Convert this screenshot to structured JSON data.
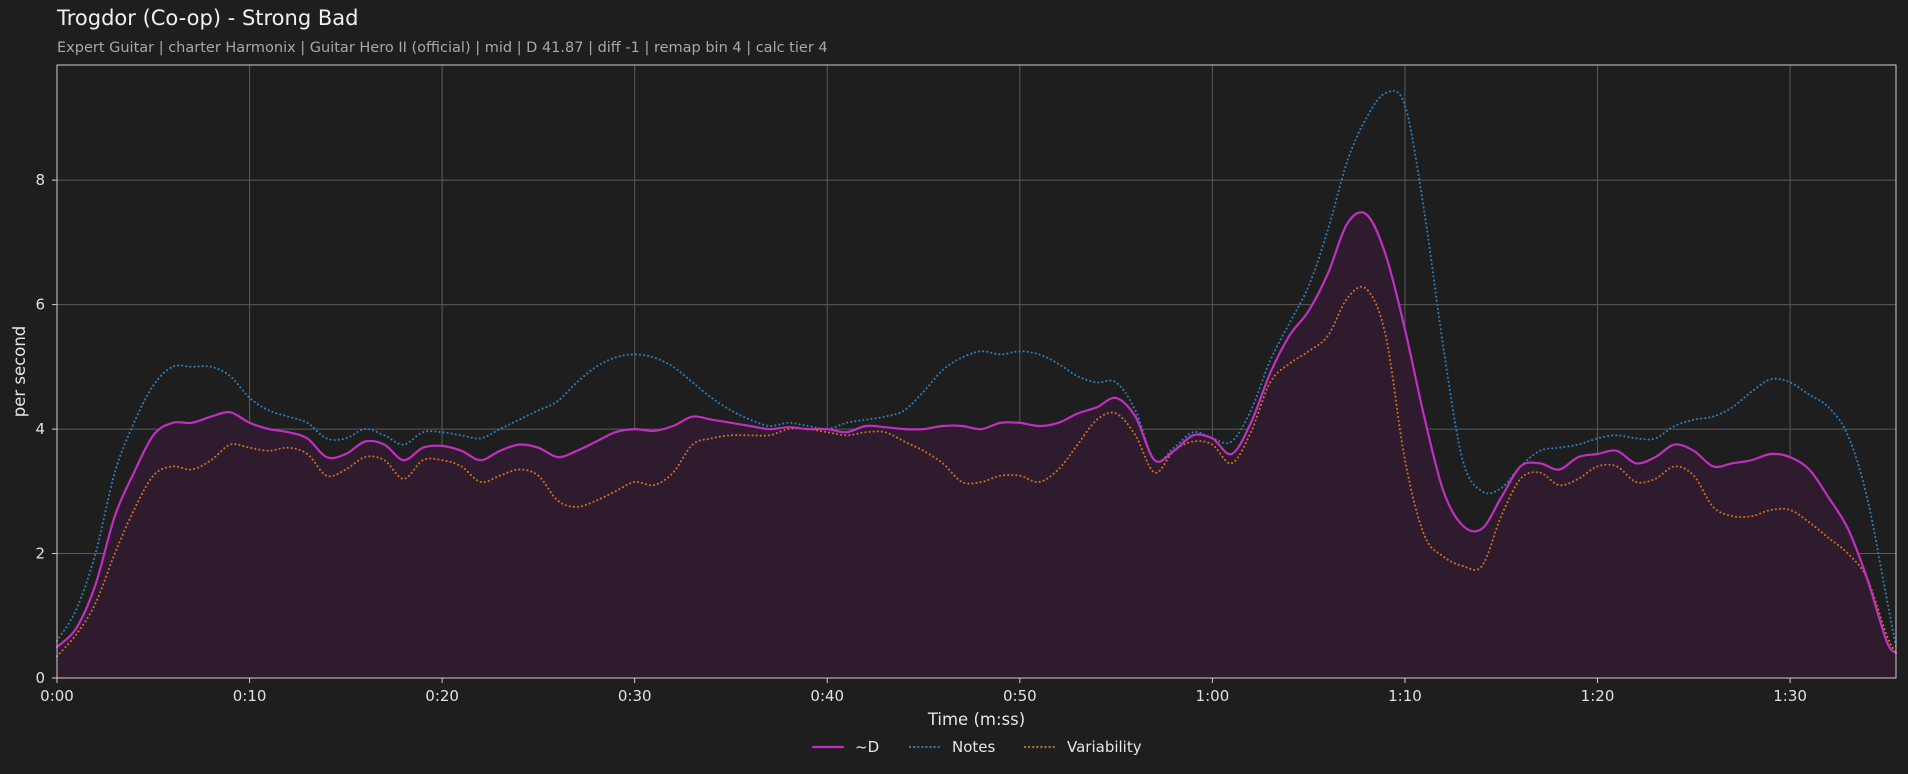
{
  "title": "Trogdor (Co-op) - Strong Bad",
  "subtitle": "Expert Guitar  |  charter Harmonix  |  Guitar Hero II (official)  |  mid  |  D 41.87  |  diff -1  |  remap bin 4  |  calc tier 4",
  "chart_data": {
    "type": "line",
    "title": "Trogdor (Co-op) - Strong Bad",
    "xlabel": "Time (m:ss)",
    "ylabel": "per second",
    "xlim": [
      0,
      95.5
    ],
    "ylim": [
      0,
      9.85
    ],
    "grid": true,
    "legend_position": "bottom-center",
    "x_ticks": [
      {
        "value": 0,
        "label": "0:00"
      },
      {
        "value": 10,
        "label": "0:10"
      },
      {
        "value": 20,
        "label": "0:20"
      },
      {
        "value": 30,
        "label": "0:30"
      },
      {
        "value": 40,
        "label": "0:40"
      },
      {
        "value": 50,
        "label": "0:50"
      },
      {
        "value": 60,
        "label": "1:00"
      },
      {
        "value": 70,
        "label": "1:10"
      },
      {
        "value": 80,
        "label": "1:20"
      },
      {
        "value": 90,
        "label": "1:30"
      }
    ],
    "y_ticks": [
      {
        "value": 0,
        "label": "0"
      },
      {
        "value": 2,
        "label": "2"
      },
      {
        "value": 4,
        "label": "4"
      },
      {
        "value": 6,
        "label": "6"
      },
      {
        "value": 8,
        "label": "8"
      }
    ],
    "x": [
      0,
      1,
      2,
      3,
      4,
      5,
      6,
      7,
      8,
      9,
      10,
      11,
      12,
      13,
      14,
      15,
      16,
      17,
      18,
      19,
      20,
      21,
      22,
      23,
      24,
      25,
      26,
      27,
      28,
      29,
      30,
      31,
      32,
      33,
      34,
      35,
      36,
      37,
      38,
      39,
      40,
      41,
      42,
      43,
      44,
      45,
      46,
      47,
      48,
      49,
      50,
      51,
      52,
      53,
      54,
      55,
      56,
      57,
      58,
      59,
      60,
      61,
      62,
      63,
      64,
      65,
      66,
      67,
      68,
      69,
      70,
      71,
      72,
      73,
      74,
      75,
      76,
      77,
      78,
      79,
      80,
      81,
      82,
      83,
      84,
      85,
      86,
      87,
      88,
      89,
      90,
      91,
      92,
      93,
      94,
      95,
      95.5
    ],
    "series": [
      {
        "name": "~D",
        "color": "#c030c0",
        "style": "solid",
        "fill": "#2e1c2e",
        "values": [
          0.5,
          0.8,
          1.5,
          2.6,
          3.3,
          3.9,
          4.1,
          4.1,
          4.2,
          4.27,
          4.1,
          4.0,
          3.95,
          3.85,
          3.55,
          3.6,
          3.8,
          3.75,
          3.5,
          3.7,
          3.73,
          3.65,
          3.5,
          3.65,
          3.75,
          3.7,
          3.55,
          3.65,
          3.8,
          3.95,
          4.0,
          3.97,
          4.05,
          4.2,
          4.15,
          4.1,
          4.05,
          4.0,
          4.03,
          4.0,
          4.0,
          3.95,
          4.05,
          4.03,
          4.0,
          4.0,
          4.05,
          4.05,
          4.0,
          4.1,
          4.1,
          4.05,
          4.1,
          4.25,
          4.35,
          4.5,
          4.2,
          3.5,
          3.65,
          3.9,
          3.85,
          3.6,
          4.1,
          4.9,
          5.5,
          5.9,
          6.5,
          7.3,
          7.45,
          6.8,
          5.6,
          4.2,
          3.0,
          2.45,
          2.4,
          2.9,
          3.4,
          3.45,
          3.35,
          3.55,
          3.6,
          3.65,
          3.45,
          3.55,
          3.75,
          3.65,
          3.4,
          3.45,
          3.5,
          3.6,
          3.55,
          3.35,
          2.9,
          2.4,
          1.6,
          0.6,
          0.4
        ]
      },
      {
        "name": "Notes",
        "color": "#2b7fc0",
        "style": "dotted",
        "values": [
          0.6,
          1.1,
          2.0,
          3.3,
          4.1,
          4.7,
          5.0,
          5.0,
          5.0,
          4.85,
          4.5,
          4.3,
          4.2,
          4.1,
          3.85,
          3.85,
          4.0,
          3.9,
          3.75,
          3.95,
          3.95,
          3.9,
          3.85,
          4.0,
          4.15,
          4.3,
          4.45,
          4.75,
          5.0,
          5.15,
          5.2,
          5.15,
          5.0,
          4.75,
          4.5,
          4.3,
          4.15,
          4.05,
          4.1,
          4.05,
          4.0,
          4.1,
          4.15,
          4.2,
          4.3,
          4.6,
          4.95,
          5.15,
          5.25,
          5.2,
          5.25,
          5.2,
          5.05,
          4.85,
          4.75,
          4.75,
          4.3,
          3.5,
          3.7,
          3.95,
          3.85,
          3.8,
          4.3,
          5.1,
          5.7,
          6.3,
          7.2,
          8.3,
          9.0,
          9.4,
          9.2,
          7.5,
          5.3,
          3.5,
          3.0,
          3.05,
          3.4,
          3.65,
          3.7,
          3.75,
          3.85,
          3.9,
          3.85,
          3.85,
          4.05,
          4.15,
          4.2,
          4.35,
          4.6,
          4.8,
          4.75,
          4.55,
          4.35,
          3.9,
          2.9,
          1.3,
          0.5
        ]
      },
      {
        "name": "Variability",
        "color": "#d07020",
        "style": "dotted",
        "values": [
          0.35,
          0.7,
          1.2,
          2.0,
          2.7,
          3.25,
          3.4,
          3.35,
          3.5,
          3.75,
          3.7,
          3.65,
          3.7,
          3.6,
          3.25,
          3.35,
          3.55,
          3.5,
          3.2,
          3.5,
          3.5,
          3.4,
          3.15,
          3.25,
          3.35,
          3.25,
          2.85,
          2.75,
          2.85,
          3.0,
          3.15,
          3.1,
          3.3,
          3.75,
          3.85,
          3.9,
          3.9,
          3.9,
          4.0,
          4.0,
          3.95,
          3.9,
          3.95,
          3.95,
          3.8,
          3.65,
          3.45,
          3.15,
          3.15,
          3.25,
          3.25,
          3.15,
          3.35,
          3.75,
          4.15,
          4.25,
          3.9,
          3.3,
          3.65,
          3.8,
          3.75,
          3.45,
          3.95,
          4.75,
          5.05,
          5.25,
          5.5,
          6.1,
          6.25,
          5.5,
          3.5,
          2.3,
          1.95,
          1.8,
          1.8,
          2.6,
          3.2,
          3.3,
          3.1,
          3.2,
          3.4,
          3.4,
          3.15,
          3.2,
          3.4,
          3.25,
          2.75,
          2.6,
          2.6,
          2.7,
          2.7,
          2.5,
          2.25,
          2.0,
          1.6,
          0.7,
          0.4
        ]
      }
    ]
  }
}
